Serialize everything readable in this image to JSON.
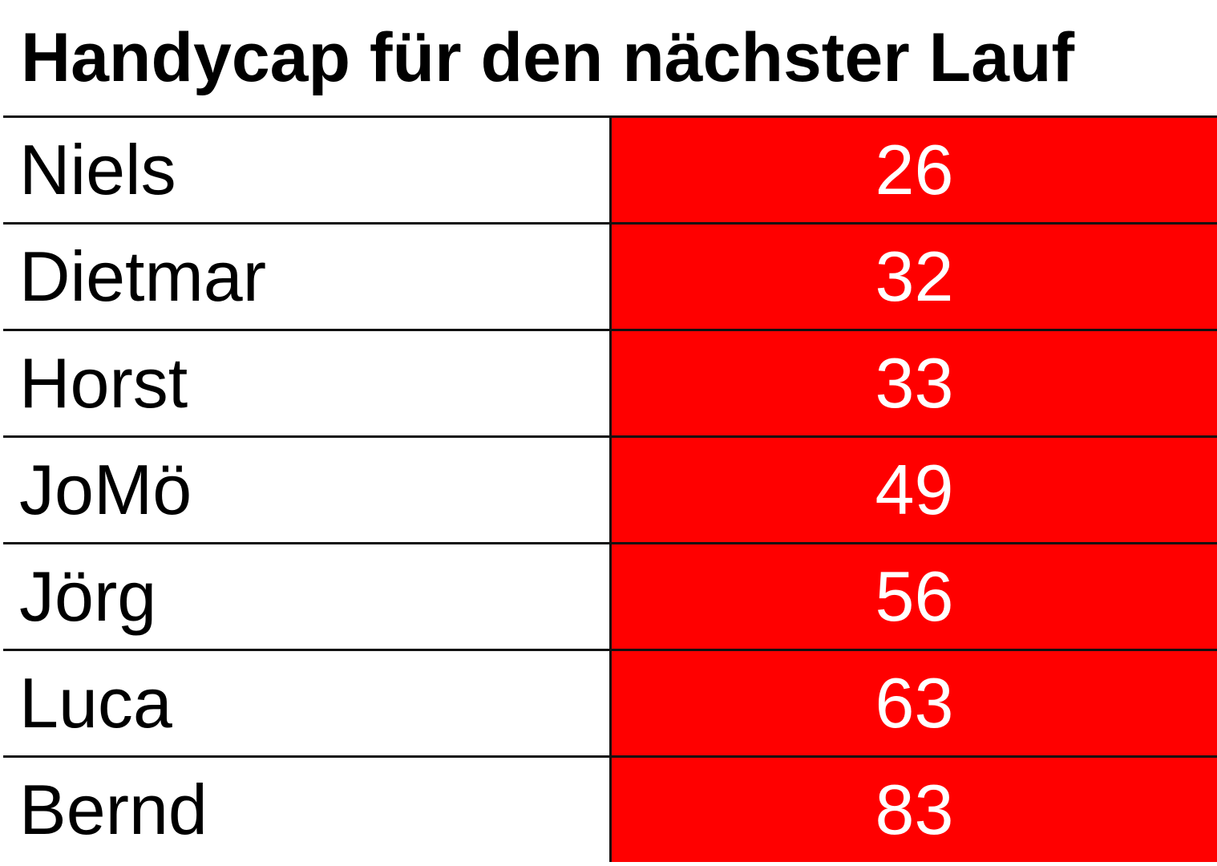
{
  "table": {
    "title": "Handycap für den nächster Lauf",
    "rows": [
      [
        "Niels",
        26
      ],
      [
        "Dietmar",
        32
      ],
      [
        "Horst",
        33
      ],
      [
        "JoMö",
        49
      ],
      [
        "Jörg",
        56
      ],
      [
        "Luca",
        63
      ],
      [
        "Bernd",
        83
      ]
    ]
  }
}
